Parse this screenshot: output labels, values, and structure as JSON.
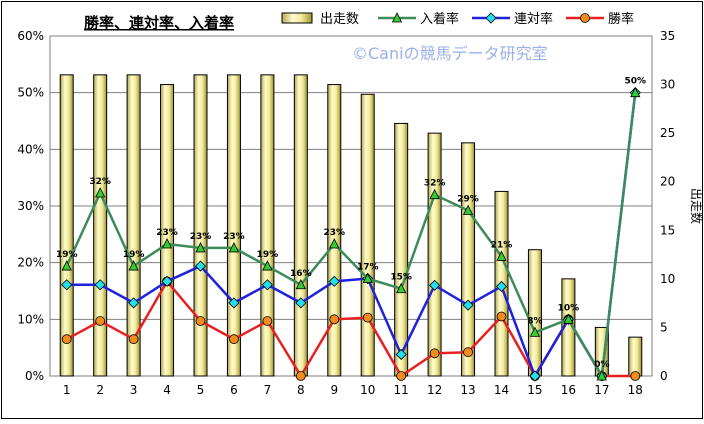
{
  "chart_data": {
    "type": "bar",
    "title": "勝率、連対率、入着率",
    "watermark": "©Caniの競馬データ研究室",
    "categories": [
      "1",
      "2",
      "3",
      "4",
      "5",
      "6",
      "7",
      "8",
      "9",
      "10",
      "11",
      "12",
      "13",
      "14",
      "15",
      "16",
      "17",
      "18"
    ],
    "left_axis": {
      "min": 0,
      "max": 60,
      "step": 10,
      "format": "percent",
      "tick_labels": [
        "0%",
        "10%",
        "20%",
        "30%",
        "40%",
        "50%",
        "60%"
      ]
    },
    "right_axis": {
      "label": "出走数",
      "min": 0,
      "max": 35,
      "step": 5,
      "tick_labels": [
        "0",
        "5",
        "10",
        "15",
        "20",
        "25",
        "30",
        "35"
      ]
    },
    "legend_position": "top-right",
    "grid": true,
    "series": [
      {
        "name": "出走数",
        "kind": "bar",
        "axis": "right",
        "color": "#F2EB9C",
        "values": [
          31,
          31,
          31,
          30,
          31,
          31,
          31,
          31,
          30,
          29,
          26,
          25,
          24,
          19,
          13,
          10,
          5,
          4
        ]
      },
      {
        "name": "入着率",
        "kind": "line",
        "axis": "left",
        "color": "#3C8C5A",
        "marker": "triangle",
        "values": [
          19.4,
          32.3,
          19.4,
          23.3,
          22.6,
          22.6,
          19.4,
          16.1,
          23.3,
          17.2,
          15.4,
          32.0,
          29.2,
          21.1,
          7.7,
          10.0,
          0,
          50.0
        ],
        "labels": [
          "19%",
          "32%",
          "19%",
          "23%",
          "23%",
          "23%",
          "19%",
          "16%",
          "23%",
          "17%",
          "15%",
          "32%",
          "29%",
          "21%",
          "8%",
          "10%",
          "0%",
          "50%"
        ]
      },
      {
        "name": "連対率",
        "kind": "line",
        "axis": "left",
        "color": "#1E22DC",
        "marker": "diamond",
        "values": [
          16.1,
          16.1,
          12.9,
          16.7,
          19.4,
          12.9,
          16.1,
          12.9,
          16.7,
          17.2,
          3.8,
          16.0,
          12.5,
          15.8,
          0,
          10.0,
          0,
          50.0
        ]
      },
      {
        "name": "勝率",
        "kind": "line",
        "axis": "left",
        "color": "#E8201E",
        "marker": "circle",
        "values": [
          6.5,
          9.7,
          6.5,
          16.7,
          9.7,
          6.5,
          9.7,
          0,
          10.0,
          10.3,
          0,
          4.0,
          4.2,
          10.5,
          0,
          10.0,
          0,
          0
        ]
      }
    ]
  }
}
